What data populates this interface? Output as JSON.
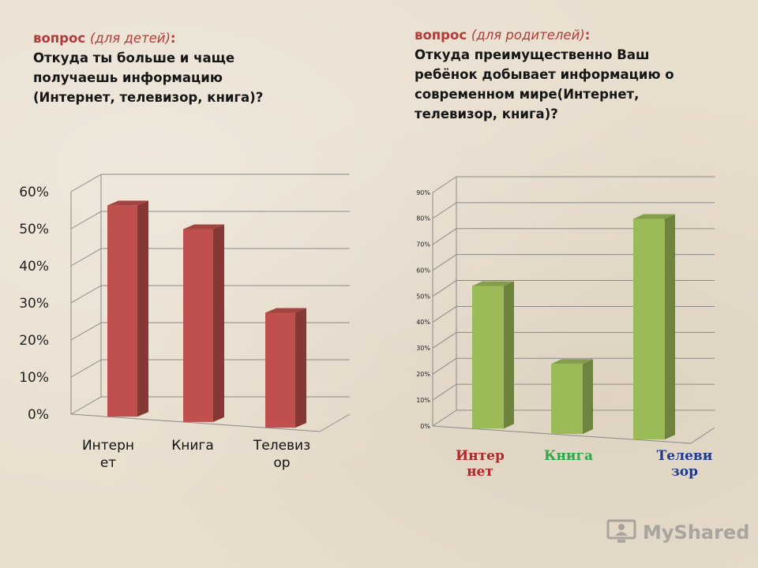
{
  "question_left": {
    "prefix": "вопрос",
    "italic": "(для детей)",
    "colon": ":",
    "body": "Откуда ты больше и чаще получаешь информацию (Интернет, телевизор, книга)?"
  },
  "question_right": {
    "prefix": "вопрос",
    "italic": "(для родителей)",
    "colon": ":",
    "body": "Откуда преимущественно Ваш ребёнок добывает информацию о современном мире(Интернет, телевизор, книга)?"
  },
  "watermark": {
    "text": "MyShared",
    "icon": "monitor-person-icon"
  },
  "chart_data": [
    {
      "type": "bar",
      "title": "",
      "categories": [
        [
          "Интерн",
          "ет"
        ],
        [
          "Книга"
        ],
        [
          "Телевиз",
          "ор"
        ]
      ],
      "values": [
        57,
        52,
        31
      ],
      "ylim": [
        0,
        60
      ],
      "yticks": [
        "0%",
        "10%",
        "20%",
        "30%",
        "40%",
        "50%",
        "60%"
      ],
      "grid": true,
      "bar_color": "#c0504d",
      "label_colors": [
        "#111111",
        "#111111",
        "#111111"
      ]
    },
    {
      "type": "bar",
      "title": "",
      "categories": [
        [
          "Интер",
          "нет"
        ],
        [
          "Книга"
        ],
        [
          "Телеви",
          "зор"
        ]
      ],
      "values": [
        55,
        27,
        85
      ],
      "ylim": [
        0,
        90
      ],
      "yticks": [
        "0%",
        "10%",
        "20%",
        "30%",
        "40%",
        "50%",
        "60%",
        "70%",
        "80%",
        "90%"
      ],
      "grid": true,
      "bar_color": "#9bbb59",
      "label_colors": [
        "#b0282a",
        "#2ea84a",
        "#1f3a8c"
      ]
    }
  ]
}
